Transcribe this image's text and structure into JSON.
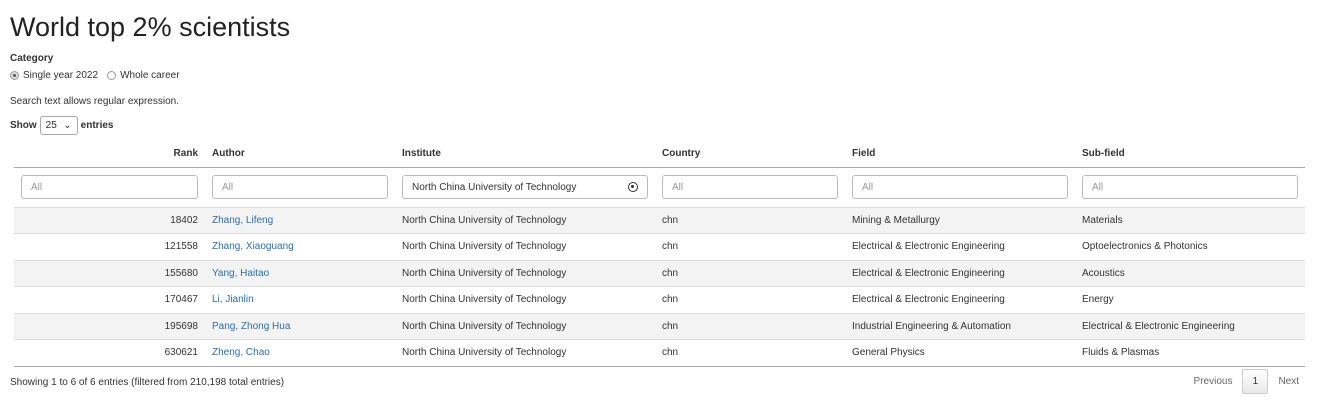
{
  "title": "World top 2% scientists",
  "category": {
    "label": "Category",
    "options": [
      {
        "label": "Single year 2022",
        "selected": true
      },
      {
        "label": "Whole career",
        "selected": false
      }
    ]
  },
  "note": "Search text allows regular expression.",
  "length": {
    "show": "Show",
    "value": "25",
    "entries": "entries"
  },
  "columns": [
    "Rank",
    "Author",
    "Institute",
    "Country",
    "Field",
    "Sub-field"
  ],
  "filters": {
    "placeholder": "All",
    "institute_value": "North China University of Technology"
  },
  "rows": [
    {
      "rank": "18402",
      "author": "Zhang, Lifeng",
      "institute": "North China University of Technology",
      "country": "chn",
      "field": "Mining & Metallurgy",
      "subfield": "Materials"
    },
    {
      "rank": "121558",
      "author": "Zhang, Xiaoguang",
      "institute": "North China University of Technology",
      "country": "chn",
      "field": "Electrical & Electronic Engineering",
      "subfield": "Optoelectronics & Photonics"
    },
    {
      "rank": "155680",
      "author": "Yang, Haitao",
      "institute": "North China University of Technology",
      "country": "chn",
      "field": "Electrical & Electronic Engineering",
      "subfield": "Acoustics"
    },
    {
      "rank": "170467",
      "author": "Li, Jianlin",
      "institute": "North China University of Technology",
      "country": "chn",
      "field": "Electrical & Electronic Engineering",
      "subfield": "Energy"
    },
    {
      "rank": "195698",
      "author": "Pang, Zhong Hua",
      "institute": "North China University of Technology",
      "country": "chn",
      "field": "Industrial Engineering & Automation",
      "subfield": "Electrical & Electronic Engineering"
    },
    {
      "rank": "630621",
      "author": "Zheng, Chao",
      "institute": "North China University of Technology",
      "country": "chn",
      "field": "General Physics",
      "subfield": "Fluids & Plasmas"
    }
  ],
  "info": "Showing 1 to 6 of 6 entries (filtered from 210,198 total entries)",
  "pagination": {
    "previous": "Previous",
    "page": "1",
    "next": "Next"
  },
  "colors": {
    "link": "#2a6fb0",
    "stripe": "#f3f3f3"
  }
}
